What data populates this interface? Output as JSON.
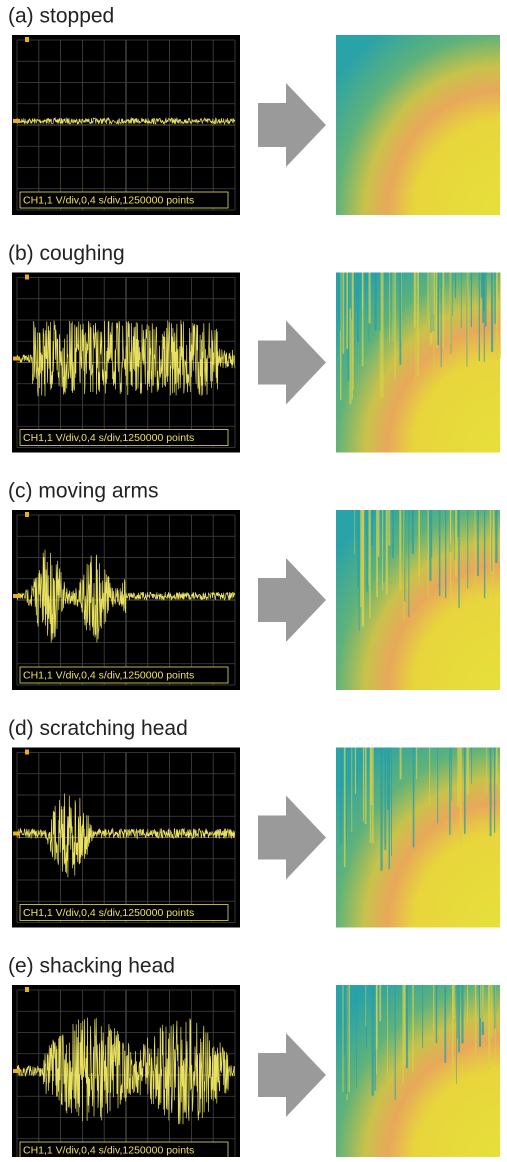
{
  "panels": [
    {
      "label": "(a) stopped",
      "caption": "CH1,1 V/div,0,4 s/div,1250000 points"
    },
    {
      "label": "(b) coughing",
      "caption": "CH1,1 V/div,0,4 s/div,1250000 points"
    },
    {
      "label": "(c) moving arms",
      "caption": "CH1,1 V/div,0,4 s/div,1250000 points"
    },
    {
      "label": "(d) scratching head",
      "caption": "CH1,1 V/div,0,4 s/div,1250000 points"
    },
    {
      "label": "(e) shacking head",
      "caption": "CH1,1 V/div,0,4 s/div,1250000 points"
    }
  ]
}
